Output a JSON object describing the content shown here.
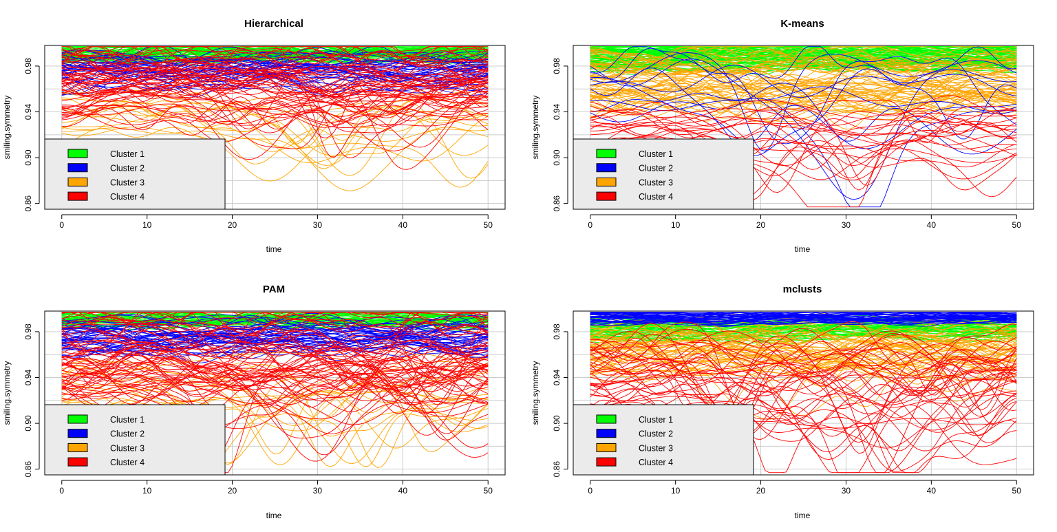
{
  "figure": {
    "cluster_colors": [
      "#00ff00",
      "#0000ff",
      "#ffa500",
      "#ff0000"
    ]
  },
  "chart_data": [
    {
      "type": "line",
      "title": "Hierarchical",
      "xlabel": "time",
      "ylabel": "smiling.symmetry",
      "xlim": [
        -2,
        52
      ],
      "ylim": [
        0.855,
        0.998
      ],
      "x_ticks": [
        0,
        10,
        20,
        30,
        40,
        50
      ],
      "y_ticks": [
        0.86,
        0.9,
        0.94,
        0.98
      ],
      "y_tick_labels": [
        "0.86",
        "0.90",
        "0.94",
        "0.98"
      ],
      "grid": true,
      "legend": {
        "placement": "bottom-left",
        "entries": [
          "Cluster 1",
          "Cluster 2",
          "Cluster 3",
          "Cluster 4"
        ]
      },
      "series": [
        {
          "name": "Cluster 1",
          "color": "#00ff00",
          "count": 55,
          "level_range": [
            0.985,
            0.997
          ],
          "amplitude": 0.004,
          "drop_prob": 0.0,
          "drop_depth": [
            0.0,
            0.0
          ]
        },
        {
          "name": "Cluster 2",
          "color": "#0000ff",
          "count": 40,
          "level_range": [
            0.962,
            0.988
          ],
          "amplitude": 0.008,
          "drop_prob": 0.1,
          "drop_depth": [
            0.005,
            0.015
          ]
        },
        {
          "name": "Cluster 3",
          "color": "#ffa500",
          "count": 14,
          "level_range": [
            0.915,
            0.955
          ],
          "amplitude": 0.012,
          "drop_prob": 0.8,
          "drop_depth": [
            0.02,
            0.06
          ]
        },
        {
          "name": "Cluster 4",
          "color": "#ff0000",
          "count": 60,
          "level_range": [
            0.935,
            0.996
          ],
          "amplitude": 0.015,
          "drop_prob": 0.6,
          "drop_depth": [
            0.015,
            0.05
          ]
        }
      ]
    },
    {
      "type": "line",
      "title": "K-means",
      "xlabel": "time",
      "ylabel": "smiling.symmetry",
      "xlim": [
        -2,
        52
      ],
      "ylim": [
        0.855,
        0.998
      ],
      "x_ticks": [
        0,
        10,
        20,
        30,
        40,
        50
      ],
      "y_ticks": [
        0.86,
        0.9,
        0.94,
        0.98
      ],
      "y_tick_labels": [
        "0.86",
        "0.90",
        "0.94",
        "0.98"
      ],
      "grid": true,
      "legend": {
        "placement": "bottom-left",
        "entries": [
          "Cluster 1",
          "Cluster 2",
          "Cluster 3",
          "Cluster 4"
        ]
      },
      "series": [
        {
          "name": "Cluster 1",
          "color": "#00ff00",
          "count": 75,
          "level_range": [
            0.978,
            0.997
          ],
          "amplitude": 0.005,
          "drop_prob": 0.0,
          "drop_depth": [
            0.0,
            0.0
          ]
        },
        {
          "name": "Cluster 3",
          "color": "#ffa500",
          "count": 65,
          "level_range": [
            0.945,
            0.99
          ],
          "amplitude": 0.012,
          "drop_prob": 0.35,
          "drop_depth": [
            0.01,
            0.035
          ]
        },
        {
          "name": "Cluster 2",
          "color": "#0000ff",
          "count": 10,
          "level_range": [
            0.94,
            0.985
          ],
          "amplitude": 0.015,
          "drop_prob": 0.9,
          "drop_depth": [
            0.03,
            0.07
          ]
        },
        {
          "name": "Cluster 4",
          "color": "#ff0000",
          "count": 22,
          "level_range": [
            0.905,
            0.95
          ],
          "amplitude": 0.012,
          "drop_prob": 0.6,
          "drop_depth": [
            0.02,
            0.05
          ]
        }
      ]
    },
    {
      "type": "line",
      "title": "PAM",
      "xlabel": "time",
      "ylabel": "smiling.symmetry",
      "xlim": [
        -2,
        52
      ],
      "ylim": [
        0.855,
        0.998
      ],
      "x_ticks": [
        0,
        10,
        20,
        30,
        40,
        50
      ],
      "y_ticks": [
        0.86,
        0.9,
        0.94,
        0.98
      ],
      "y_tick_labels": [
        "0.86",
        "0.90",
        "0.94",
        "0.98"
      ],
      "grid": true,
      "legend": {
        "placement": "bottom-left",
        "entries": [
          "Cluster 1",
          "Cluster 2",
          "Cluster 3",
          "Cluster 4"
        ]
      },
      "series": [
        {
          "name": "Cluster 1",
          "color": "#00ff00",
          "count": 45,
          "level_range": [
            0.985,
            0.997
          ],
          "amplitude": 0.004,
          "drop_prob": 0.0,
          "drop_depth": [
            0.0,
            0.0
          ]
        },
        {
          "name": "Cluster 2",
          "color": "#0000ff",
          "count": 45,
          "level_range": [
            0.965,
            0.99
          ],
          "amplitude": 0.008,
          "drop_prob": 0.1,
          "drop_depth": [
            0.005,
            0.015
          ]
        },
        {
          "name": "Cluster 3",
          "color": "#ffa500",
          "count": 16,
          "level_range": [
            0.91,
            0.955
          ],
          "amplitude": 0.012,
          "drop_prob": 0.8,
          "drop_depth": [
            0.02,
            0.06
          ]
        },
        {
          "name": "Cluster 4",
          "color": "#ff0000",
          "count": 65,
          "level_range": [
            0.925,
            0.996
          ],
          "amplitude": 0.016,
          "drop_prob": 0.6,
          "drop_depth": [
            0.015,
            0.05
          ]
        }
      ]
    },
    {
      "type": "line",
      "title": "mclusts",
      "xlabel": "time",
      "ylabel": "smiling.symmetry",
      "xlim": [
        -2,
        52
      ],
      "ylim": [
        0.855,
        0.998
      ],
      "x_ticks": [
        0,
        10,
        20,
        30,
        40,
        50
      ],
      "y_ticks": [
        0.86,
        0.9,
        0.94,
        0.98
      ],
      "y_tick_labels": [
        "0.86",
        "0.90",
        "0.94",
        "0.98"
      ],
      "grid": true,
      "legend": {
        "placement": "bottom-left",
        "entries": [
          "Cluster 1",
          "Cluster 2",
          "Cluster 3",
          "Cluster 4"
        ]
      },
      "series": [
        {
          "name": "Cluster 1",
          "color": "#00ff00",
          "count": 45,
          "level_range": [
            0.975,
            0.99
          ],
          "amplitude": 0.005,
          "drop_prob": 0.0,
          "drop_depth": [
            0.0,
            0.0
          ]
        },
        {
          "name": "Cluster 3",
          "color": "#ffa500",
          "count": 55,
          "level_range": [
            0.945,
            0.988
          ],
          "amplitude": 0.012,
          "drop_prob": 0.3,
          "drop_depth": [
            0.01,
            0.035
          ]
        },
        {
          "name": "Cluster 2",
          "color": "#0000ff",
          "count": 40,
          "level_range": [
            0.988,
            0.997
          ],
          "amplitude": 0.003,
          "drop_prob": 0.0,
          "drop_depth": [
            0.0,
            0.0
          ]
        },
        {
          "name": "Cluster 4",
          "color": "#ff0000",
          "count": 40,
          "level_range": [
            0.9,
            0.97
          ],
          "amplitude": 0.018,
          "drop_prob": 0.7,
          "drop_depth": [
            0.02,
            0.06
          ]
        }
      ]
    }
  ]
}
